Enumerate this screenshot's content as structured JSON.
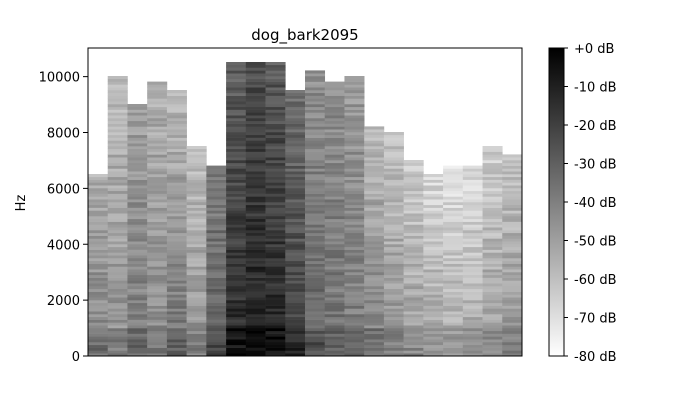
{
  "chart_data": {
    "type": "heatmap",
    "title": "dog_bark2095",
    "xlabel": "",
    "ylabel": "Hz",
    "ylim": [
      0,
      11025
    ],
    "yticks": [
      0,
      2000,
      4000,
      6000,
      8000,
      10000
    ],
    "x_ticks_visible": false,
    "colorbar": {
      "min": -80,
      "max": 0,
      "unit": "dB",
      "tick_values": [
        0,
        -10,
        -20,
        -30,
        -40,
        -50,
        -60,
        -70,
        -80
      ],
      "tick_labels": [
        "+0 dB",
        "-10 dB",
        "-20 dB",
        "-30 dB",
        "-40 dB",
        "-50 dB",
        "-60 dB",
        "-70 dB",
        "-80 dB"
      ],
      "colormap": "gray_r"
    },
    "frames": 22,
    "frame_profiles_db": [
      [
        -40,
        -55,
        6500
      ],
      [
        -45,
        -58,
        10000
      ],
      [
        -38,
        -50,
        9000
      ],
      [
        -42,
        -55,
        9800
      ],
      [
        -35,
        -58,
        9500
      ],
      [
        -45,
        -60,
        7500
      ],
      [
        -28,
        -40,
        6800
      ],
      [
        -12,
        -30,
        10500
      ],
      [
        -8,
        -25,
        10500
      ],
      [
        -10,
        -28,
        10500
      ],
      [
        -18,
        -35,
        9500
      ],
      [
        -30,
        -45,
        10200
      ],
      [
        -35,
        -45,
        9800
      ],
      [
        -38,
        -48,
        10000
      ],
      [
        -40,
        -58,
        8200
      ],
      [
        -45,
        -62,
        8000
      ],
      [
        -48,
        -65,
        7000
      ],
      [
        -50,
        -68,
        6500
      ],
      [
        -52,
        -70,
        6800
      ],
      [
        -50,
        -70,
        6800
      ],
      [
        -48,
        -65,
        7500
      ],
      [
        -45,
        -62,
        7200
      ]
    ]
  }
}
